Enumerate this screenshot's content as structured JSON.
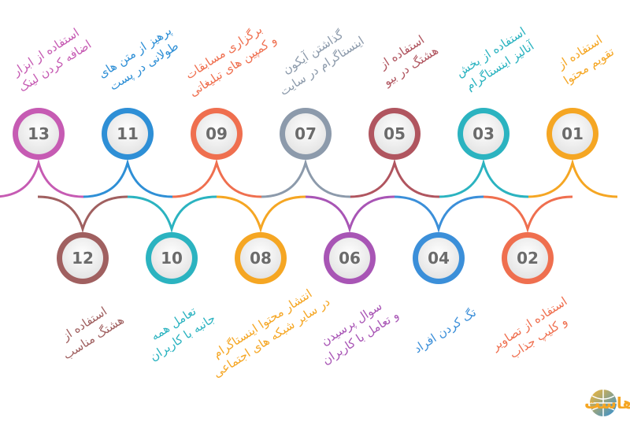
{
  "items": [
    {
      "number": "01",
      "lines": [
        "استفاده از",
        "تقویم محتوا"
      ],
      "color": "#f5a623"
    },
    {
      "number": "02",
      "lines": [
        "استفاده از تصاویر",
        "و کلیپ جذاب"
      ],
      "color": "#ef6f4f"
    },
    {
      "number": "03",
      "lines": [
        "استفاده از بخش",
        "آنالیز اینستاگرام"
      ],
      "color": "#2bb3c0"
    },
    {
      "number": "04",
      "lines": [
        "تگ کردن افراد"
      ],
      "color": "#3b8fd9"
    },
    {
      "number": "05",
      "lines": [
        "استفاده از",
        "هشتگ در بیو"
      ],
      "color": "#b0555f"
    },
    {
      "number": "06",
      "lines": [
        "سوال پرسیدن",
        "و تعامل با کاربران"
      ],
      "color": "#a855b5"
    },
    {
      "number": "07",
      "lines": [
        "گذاشتن آیکون",
        "اینستاگرام در سایت"
      ],
      "color": "#8c9aab"
    },
    {
      "number": "08",
      "lines": [
        "انتشار محتوا اینستاگرام",
        "در سایر شبکه های اجتماعی"
      ],
      "color": "#f5a623"
    },
    {
      "number": "09",
      "lines": [
        "برگزاری مسابقات",
        "و کمپین های تبلیغاتی"
      ],
      "color": "#ef6f4f"
    },
    {
      "number": "10",
      "lines": [
        "تعامل همه",
        "جانبه با کاربران"
      ],
      "color": "#2bb3c0"
    },
    {
      "number": "11",
      "lines": [
        "پرهیز از متن های",
        "طولانی در پست"
      ],
      "color": "#2e8fd6"
    },
    {
      "number": "12",
      "lines": [
        "استفاده از",
        "هشتگ مناسب"
      ],
      "color": "#a06060"
    },
    {
      "number": "13",
      "lines": [
        "استفاده از ابزار",
        "اضافه کردن لینک"
      ],
      "color": "#c65bb3"
    }
  ],
  "brand": "ایران هاست"
}
